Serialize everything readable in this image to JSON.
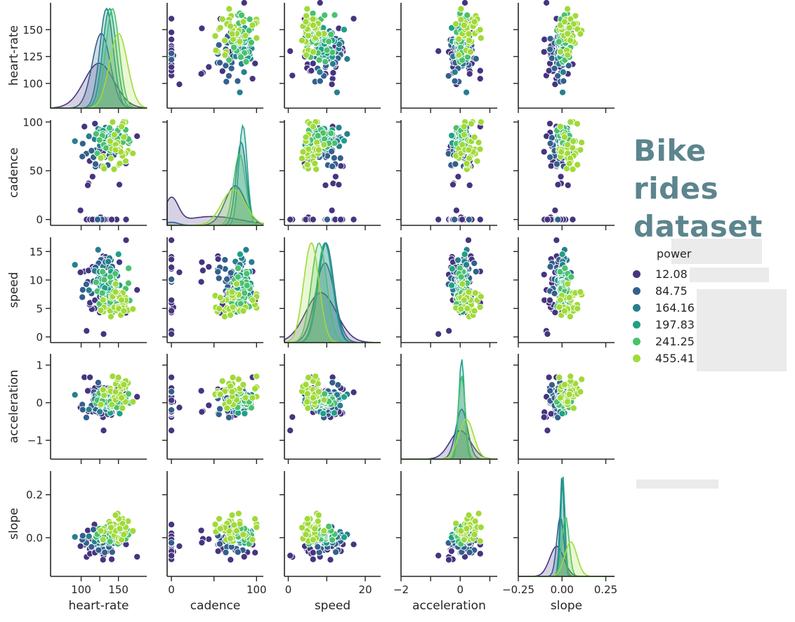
{
  "title_lines": [
    "Bike rides",
    "dataset"
  ],
  "legend": {
    "title": "power",
    "entries": [
      {
        "label": "12.08",
        "color": "#463480"
      },
      {
        "label": "84.75",
        "color": "#33608d"
      },
      {
        "label": "164.16",
        "color": "#277f8e"
      },
      {
        "label": "197.83",
        "color": "#1fa187"
      },
      {
        "label": "241.25",
        "color": "#4ac16d"
      },
      {
        "label": "455.41",
        "color": "#a0da39"
      }
    ]
  },
  "chart_data": {
    "type": "scatter",
    "subtype": "pairplot",
    "variables": [
      "heart-rate",
      "cadence",
      "speed",
      "acceleration",
      "slope"
    ],
    "hue": "power",
    "ranges": {
      "heart-rate": [
        59,
        188
      ],
      "cadence": [
        -5,
        108
      ],
      "speed": [
        -1,
        24
      ],
      "acceleration": [
        -2,
        1.25
      ],
      "slope": [
        -0.25,
        0.3
      ]
    },
    "ylims": {
      "heart-rate": [
        77,
        175
      ],
      "cadence": [
        -6,
        102
      ],
      "speed": [
        -1,
        17.5
      ],
      "acceleration": [
        -1.5,
        1.3
      ],
      "slope": [
        -0.18,
        0.31
      ]
    },
    "x_ticks": {
      "heart-rate": [
        100,
        125,
        150
      ],
      "cadence": [
        0,
        50,
        100
      ],
      "speed": [
        0,
        10,
        20
      ],
      "acceleration": [
        -2,
        -1,
        0,
        1
      ],
      "slope": [
        -0.25,
        0.0,
        0.25
      ]
    },
    "x_ticklabels": {
      "heart-rate": [
        "100",
        "",
        "150"
      ],
      "cadence": [
        "0",
        "",
        "100"
      ],
      "speed": [
        "0",
        "",
        "20"
      ],
      "acceleration": [
        "−2",
        "",
        "0",
        ""
      ],
      "slope": [
        "−0.25",
        "0.00",
        "0.25"
      ]
    },
    "y_ticks": {
      "heart-rate": [
        100,
        125,
        150
      ],
      "cadence": [
        0,
        50,
        100
      ],
      "speed": [
        0,
        5,
        10,
        15
      ],
      "acceleration": [
        -1,
        0,
        1
      ],
      "slope": [
        0.0,
        0.2
      ]
    },
    "y_ticklabels": {
      "heart-rate": [
        "100",
        "125",
        "150"
      ],
      "cadence": [
        "0",
        "50",
        "100"
      ],
      "speed": [
        "0",
        "5",
        "10",
        "15"
      ],
      "acceleration": [
        "−1",
        "0",
        "1"
      ],
      "slope": [
        "0.0",
        "0.2"
      ]
    },
    "groups": [
      {
        "label": "12.08",
        "center": {
          "heart-rate": 124,
          "cadence": 48,
          "speed": 8.5,
          "acceleration": 0.0,
          "slope": -0.03
        },
        "spread": {
          "heart-rate": 20,
          "cadence": 34,
          "speed": 4.0,
          "acceleration": 0.35,
          "slope": 0.04
        },
        "cadence_zero_share": 0.4
      },
      {
        "label": "84.75",
        "center": {
          "heart-rate": 127,
          "cadence": 75,
          "speed": 9.5,
          "acceleration": 0.05,
          "slope": -0.01
        },
        "spread": {
          "heart-rate": 12,
          "cadence": 12,
          "speed": 2.5,
          "acceleration": 0.2,
          "slope": 0.02
        },
        "cadence_zero_share": 0.05
      },
      {
        "label": "164.16",
        "center": {
          "heart-rate": 134,
          "cadence": 82,
          "speed": 9.8,
          "acceleration": 0.05,
          "slope": 0.0
        },
        "spread": {
          "heart-rate": 9,
          "cadence": 6,
          "speed": 2.0,
          "acceleration": 0.12,
          "slope": 0.012
        },
        "cadence_zero_share": 0.0
      },
      {
        "label": "197.83",
        "center": {
          "heart-rate": 138,
          "cadence": 84,
          "speed": 9.5,
          "acceleration": 0.05,
          "slope": 0.005
        },
        "spread": {
          "heart-rate": 9,
          "cadence": 5,
          "speed": 2.0,
          "acceleration": 0.1,
          "slope": 0.012
        },
        "cadence_zero_share": 0.0
      },
      {
        "label": "241.25",
        "center": {
          "heart-rate": 142,
          "cadence": 80,
          "speed": 8.0,
          "acceleration": 0.05,
          "slope": 0.02
        },
        "spread": {
          "heart-rate": 9,
          "cadence": 7,
          "speed": 2.0,
          "acceleration": 0.12,
          "slope": 0.02
        },
        "cadence_zero_share": 0.0
      },
      {
        "label": "455.41",
        "center": {
          "heart-rate": 150,
          "cadence": 73,
          "speed": 6.0,
          "acceleration": 0.2,
          "slope": 0.05
        },
        "spread": {
          "heart-rate": 12,
          "cadence": 14,
          "speed": 2.0,
          "acceleration": 0.25,
          "slope": 0.035
        },
        "cadence_zero_share": 0.0
      }
    ],
    "points_per_group": 32,
    "grid": false,
    "legend_position": "right"
  }
}
